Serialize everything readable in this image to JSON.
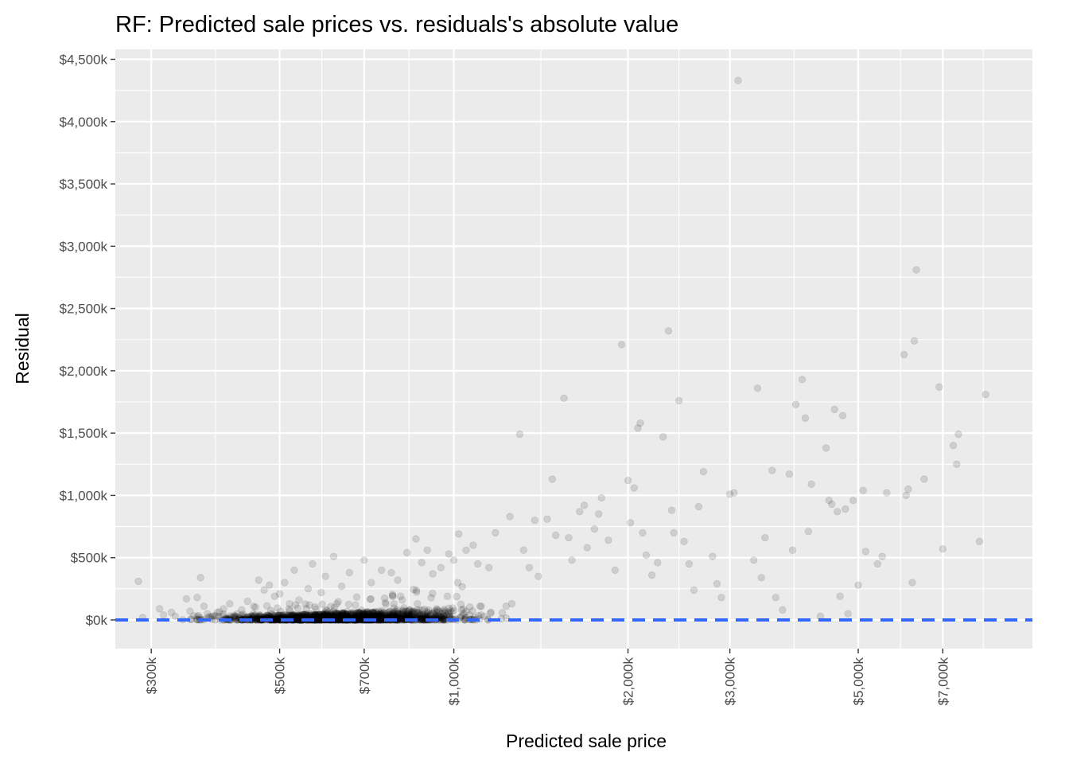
{
  "chart_data": {
    "type": "scatter",
    "title": "RF: Predicted sale prices vs. residuals's absolute value",
    "xlabel": "Predicted sale price",
    "ylabel": "Residual",
    "x_scale": "log",
    "xlim": [
      260000,
      10000000
    ],
    "ylim": [
      -230000,
      4580000
    ],
    "x_ticks": [
      {
        "value": 300000,
        "label": "$300k"
      },
      {
        "value": 500000,
        "label": "$500k"
      },
      {
        "value": 700000,
        "label": "$700k"
      },
      {
        "value": 1000000,
        "label": "$1,000k"
      },
      {
        "value": 2000000,
        "label": "$2,000k"
      },
      {
        "value": 3000000,
        "label": "$3,000k"
      },
      {
        "value": 5000000,
        "label": "$5,000k"
      },
      {
        "value": 7000000,
        "label": "$7,000k"
      }
    ],
    "y_ticks": [
      {
        "value": 0,
        "label": "$0k"
      },
      {
        "value": 500000,
        "label": "$500k"
      },
      {
        "value": 1000000,
        "label": "$1,000k"
      },
      {
        "value": 1500000,
        "label": "$1,500k"
      },
      {
        "value": 2000000,
        "label": "$2,000k"
      },
      {
        "value": 2500000,
        "label": "$2,500k"
      },
      {
        "value": 3000000,
        "label": "$3,000k"
      },
      {
        "value": 3500000,
        "label": "$3,500k"
      },
      {
        "value": 4000000,
        "label": "$4,000k"
      },
      {
        "value": 4500000,
        "label": "$4,500k"
      }
    ],
    "reference_line": {
      "y": 0,
      "style": "dashed",
      "color": "#3366ff"
    },
    "point_color": "#000000",
    "point_alpha": 0.12,
    "panel_color": "#ebebeb",
    "grid": true,
    "legend": "none",
    "points": [
      [
        285000,
        310000
      ],
      [
        290000,
        20000
      ],
      [
        310000,
        90000
      ],
      [
        315000,
        40000
      ],
      [
        325000,
        60000
      ],
      [
        330000,
        30000
      ],
      [
        345000,
        170000
      ],
      [
        350000,
        70000
      ],
      [
        360000,
        180000
      ],
      [
        365000,
        340000
      ],
      [
        370000,
        110000
      ],
      [
        375000,
        50000
      ],
      [
        380000,
        20000
      ],
      [
        390000,
        60000
      ],
      [
        400000,
        90000
      ],
      [
        410000,
        130000
      ],
      [
        420000,
        30000
      ],
      [
        430000,
        80000
      ],
      [
        440000,
        150000
      ],
      [
        450000,
        50000
      ],
      [
        460000,
        320000
      ],
      [
        470000,
        240000
      ],
      [
        480000,
        280000
      ],
      [
        490000,
        190000
      ],
      [
        500000,
        210000
      ],
      [
        510000,
        300000
      ],
      [
        520000,
        130000
      ],
      [
        530000,
        400000
      ],
      [
        540000,
        160000
      ],
      [
        560000,
        250000
      ],
      [
        570000,
        450000
      ],
      [
        590000,
        220000
      ],
      [
        600000,
        350000
      ],
      [
        620000,
        510000
      ],
      [
        640000,
        270000
      ],
      [
        660000,
        380000
      ],
      [
        700000,
        480000
      ],
      [
        720000,
        300000
      ],
      [
        750000,
        400000
      ],
      [
        780000,
        380000
      ],
      [
        800000,
        320000
      ],
      [
        830000,
        540000
      ],
      [
        860000,
        650000
      ],
      [
        880000,
        460000
      ],
      [
        900000,
        560000
      ],
      [
        920000,
        370000
      ],
      [
        950000,
        420000
      ],
      [
        980000,
        530000
      ],
      [
        1000000,
        480000
      ],
      [
        1020000,
        690000
      ],
      [
        1050000,
        560000
      ],
      [
        1080000,
        600000
      ],
      [
        1100000,
        450000
      ],
      [
        1150000,
        420000
      ],
      [
        1180000,
        700000
      ],
      [
        1250000,
        830000
      ],
      [
        1300000,
        1490000
      ],
      [
        1320000,
        560000
      ],
      [
        1350000,
        420000
      ],
      [
        1380000,
        800000
      ],
      [
        1400000,
        350000
      ],
      [
        1450000,
        810000
      ],
      [
        1480000,
        1130000
      ],
      [
        1500000,
        680000
      ],
      [
        1550000,
        1780000
      ],
      [
        1580000,
        660000
      ],
      [
        1600000,
        480000
      ],
      [
        1650000,
        870000
      ],
      [
        1680000,
        920000
      ],
      [
        1700000,
        580000
      ],
      [
        1750000,
        730000
      ],
      [
        1780000,
        850000
      ],
      [
        1800000,
        980000
      ],
      [
        1850000,
        640000
      ],
      [
        1900000,
        400000
      ],
      [
        1950000,
        2210000
      ],
      [
        2000000,
        1120000
      ],
      [
        2020000,
        780000
      ],
      [
        2050000,
        1060000
      ],
      [
        2080000,
        1540000
      ],
      [
        2100000,
        1580000
      ],
      [
        2120000,
        700000
      ],
      [
        2150000,
        520000
      ],
      [
        2200000,
        360000
      ],
      [
        2250000,
        460000
      ],
      [
        2300000,
        1470000
      ],
      [
        2350000,
        2320000
      ],
      [
        2380000,
        880000
      ],
      [
        2400000,
        700000
      ],
      [
        2450000,
        1760000
      ],
      [
        2500000,
        630000
      ],
      [
        2550000,
        450000
      ],
      [
        2600000,
        240000
      ],
      [
        2650000,
        910000
      ],
      [
        2700000,
        1190000
      ],
      [
        2800000,
        510000
      ],
      [
        2850000,
        290000
      ],
      [
        2900000,
        180000
      ],
      [
        3000000,
        1010000
      ],
      [
        3050000,
        1020000
      ],
      [
        3100000,
        4330000
      ],
      [
        3300000,
        480000
      ],
      [
        3350000,
        1860000
      ],
      [
        3400000,
        340000
      ],
      [
        3450000,
        660000
      ],
      [
        3550000,
        1200000
      ],
      [
        3600000,
        180000
      ],
      [
        3700000,
        80000
      ],
      [
        3800000,
        1170000
      ],
      [
        3850000,
        560000
      ],
      [
        3900000,
        1730000
      ],
      [
        4000000,
        1930000
      ],
      [
        4050000,
        1620000
      ],
      [
        4100000,
        710000
      ],
      [
        4150000,
        1090000
      ],
      [
        4300000,
        30000
      ],
      [
        4400000,
        1380000
      ],
      [
        4450000,
        960000
      ],
      [
        4500000,
        930000
      ],
      [
        4550000,
        1690000
      ],
      [
        4600000,
        870000
      ],
      [
        4650000,
        190000
      ],
      [
        4700000,
        1640000
      ],
      [
        4750000,
        890000
      ],
      [
        4800000,
        50000
      ],
      [
        4900000,
        960000
      ],
      [
        5000000,
        280000
      ],
      [
        5100000,
        1040000
      ],
      [
        5150000,
        550000
      ],
      [
        5400000,
        450000
      ],
      [
        5500000,
        510000
      ],
      [
        5600000,
        1020000
      ],
      [
        6000000,
        2130000
      ],
      [
        6050000,
        1000000
      ],
      [
        6100000,
        1050000
      ],
      [
        6200000,
        300000
      ],
      [
        6250000,
        2240000
      ],
      [
        6300000,
        2810000
      ],
      [
        6500000,
        1130000
      ],
      [
        6900000,
        1870000
      ],
      [
        7000000,
        570000
      ],
      [
        7300000,
        1400000
      ],
      [
        7400000,
        1250000
      ],
      [
        7450000,
        1490000
      ],
      [
        8100000,
        630000
      ],
      [
        8300000,
        1810000
      ]
    ]
  }
}
